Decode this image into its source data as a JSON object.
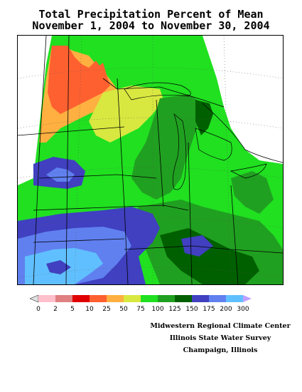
{
  "title": {
    "line1": "Total Precipitation Percent of Mean",
    "line2": "November 1, 2004 to November 30, 2004"
  },
  "legend": {
    "colors": [
      "#e0e0e0",
      "#ffc0cb",
      "#e08080",
      "#e00000",
      "#ff6030",
      "#ffb040",
      "#d8e840",
      "#20e020",
      "#20a020",
      "#006000",
      "#4040c0",
      "#6080f0",
      "#60c0ff",
      "#c0a0ff"
    ],
    "labels": [
      "0",
      "2",
      "5",
      "10",
      "25",
      "50",
      "75",
      "100",
      "125",
      "150",
      "175",
      "200",
      "300"
    ]
  },
  "credits": {
    "line1": "Midwestern Regional Climate Center",
    "line2": "Illinois State Water Survey",
    "line3": "Champaign, Illinois"
  }
}
